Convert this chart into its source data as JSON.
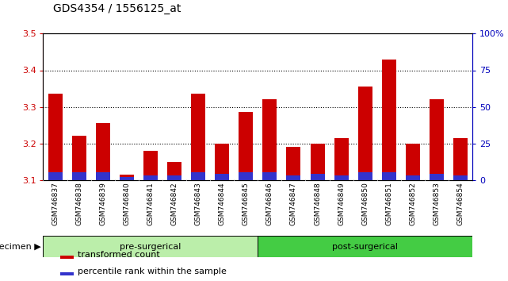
{
  "title": "GDS4354 / 1556125_at",
  "samples": [
    "GSM746837",
    "GSM746838",
    "GSM746839",
    "GSM746840",
    "GSM746841",
    "GSM746842",
    "GSM746843",
    "GSM746844",
    "GSM746845",
    "GSM746846",
    "GSM746847",
    "GSM746848",
    "GSM746849",
    "GSM746850",
    "GSM746851",
    "GSM746852",
    "GSM746853",
    "GSM746854"
  ],
  "transformed_count": [
    3.335,
    3.22,
    3.255,
    3.115,
    3.18,
    3.15,
    3.335,
    3.2,
    3.285,
    3.32,
    3.19,
    3.2,
    3.215,
    3.355,
    3.43,
    3.2,
    3.32,
    3.215
  ],
  "percentile_rank": [
    5,
    5,
    5,
    2,
    3,
    3,
    5,
    4,
    5,
    5,
    3,
    4,
    3,
    5,
    5,
    3,
    4,
    3
  ],
  "ylim_left": [
    3.1,
    3.5
  ],
  "ylim_right": [
    0,
    100
  ],
  "yticks_left": [
    3.1,
    3.2,
    3.3,
    3.4,
    3.5
  ],
  "yticks_right": [
    0,
    25,
    50,
    75,
    100
  ],
  "ytick_labels_right": [
    "0",
    "25",
    "50",
    "75",
    "100%"
  ],
  "bar_color_red": "#cc0000",
  "bar_color_blue": "#3333cc",
  "baseline": 3.1,
  "pre_label": "pre-surgerical",
  "post_label": "post-surgerical",
  "pre_color": "#bbeeaa",
  "post_color": "#44cc44",
  "specimen_label": "specimen",
  "legend_red": "transformed count",
  "legend_blue": "percentile rank within the sample",
  "background_color": "#ffffff",
  "tick_label_color_left": "#cc0000",
  "tick_label_color_right": "#0000bb",
  "bar_width": 0.6,
  "xtick_bg": "#cccccc",
  "n_pre": 9,
  "n_post": 9
}
